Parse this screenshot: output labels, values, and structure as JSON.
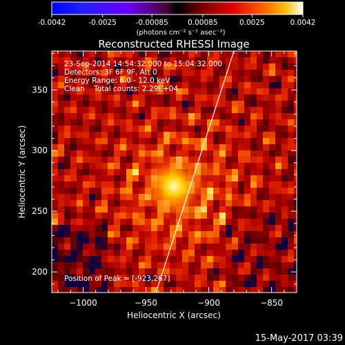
{
  "colorbar": {
    "tick_labels": [
      "-0.0042",
      "-0.0025",
      "-0.00085",
      "0.00085",
      "0.0025",
      "0.0042"
    ],
    "unit_label": "(photons cm⁻² s⁻¹ asec⁻²)",
    "range": [
      -0.0042,
      0.0042
    ]
  },
  "chart_data": {
    "type": "heatmap",
    "title": "Reconstructed RHESSI Image",
    "xlabel": "Heliocentric X (arcsec)",
    "ylabel": "Heliocentric Y (arcsec)",
    "xlim": [
      -1025,
      -830
    ],
    "ylim": [
      183,
      382
    ],
    "x_ticks": [
      -1000,
      -950,
      -900,
      -850
    ],
    "y_ticks": [
      200,
      250,
      300,
      350
    ],
    "x_tick_labels": [
      "−1000",
      "−950",
      "−900",
      "−850"
    ],
    "y_tick_labels": [
      "200",
      "250",
      "300",
      "350"
    ],
    "info_lines": [
      "23-Sep-2014 14:54:32.000 to 15:04:32.000",
      "Detectors: 3F 6F 9F, Att 0",
      "Energy Range: 6.0 - 12.0 keV",
      "Clean    Total counts: 2.29E+04"
    ],
    "peak_label": "Position of Peak = [-923,267]",
    "peak": {
      "x": -923,
      "y": 267
    },
    "limb_line": {
      "x": [
        -942,
        -880
      ],
      "y": [
        183,
        382
      ]
    }
  },
  "footer": {
    "timestamp": "15-May-2017 03:39"
  }
}
